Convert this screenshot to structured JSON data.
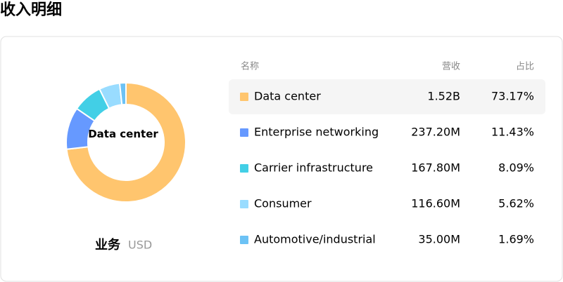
{
  "header": {
    "title": "收入明细"
  },
  "chart_data": {
    "type": "pie",
    "donut": true,
    "center_label": "Data center",
    "categories": [
      "Data center",
      "Enterprise networking",
      "Carrier infrastructure",
      "Consumer",
      "Automotive/industrial"
    ],
    "values": [
      73.17,
      11.43,
      8.09,
      5.62,
      1.69
    ],
    "value_labels": [
      "73.17%",
      "11.43%",
      "8.09%",
      "5.62%",
      "1.69%"
    ],
    "colors": [
      "#ffc56e",
      "#6699ff",
      "#42cfe6",
      "#99dcff",
      "#6cc2f5"
    ],
    "highlight": 0
  },
  "table": {
    "columns": [
      "名称",
      "营收",
      "占比"
    ],
    "revenue": [
      "1.52B",
      "237.20M",
      "167.80M",
      "116.60M",
      "35.00M"
    ]
  },
  "footer": {
    "label": "业务",
    "unit": "USD"
  }
}
